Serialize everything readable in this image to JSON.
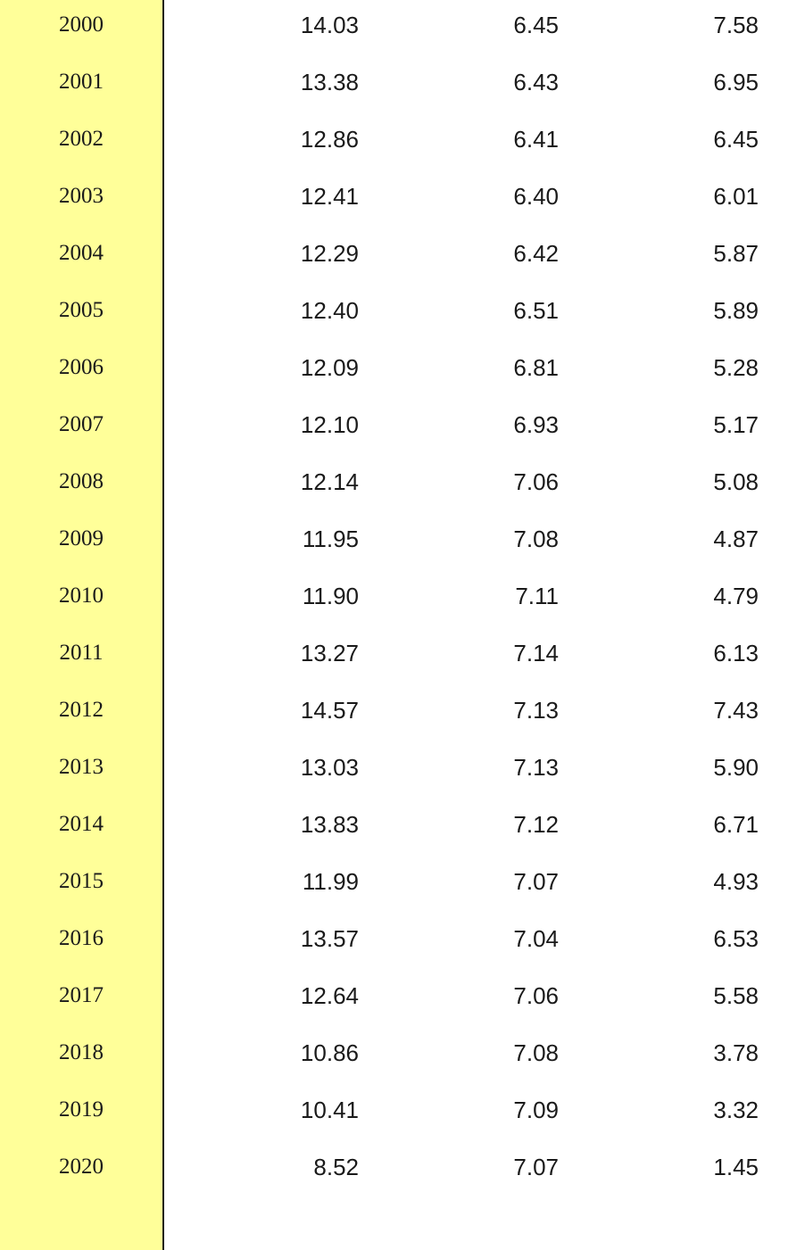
{
  "table": {
    "rows": [
      {
        "year": "2000",
        "c1": "14.03",
        "c2": "6.45",
        "c3": "7.58"
      },
      {
        "year": "2001",
        "c1": "13.38",
        "c2": "6.43",
        "c3": "6.95"
      },
      {
        "year": "2002",
        "c1": "12.86",
        "c2": "6.41",
        "c3": "6.45"
      },
      {
        "year": "2003",
        "c1": "12.41",
        "c2": "6.40",
        "c3": "6.01"
      },
      {
        "year": "2004",
        "c1": "12.29",
        "c2": "6.42",
        "c3": "5.87"
      },
      {
        "year": "2005",
        "c1": "12.40",
        "c2": "6.51",
        "c3": "5.89"
      },
      {
        "year": "2006",
        "c1": "12.09",
        "c2": "6.81",
        "c3": "5.28"
      },
      {
        "year": "2007",
        "c1": "12.10",
        "c2": "6.93",
        "c3": "5.17"
      },
      {
        "year": "2008",
        "c1": "12.14",
        "c2": "7.06",
        "c3": "5.08"
      },
      {
        "year": "2009",
        "c1": "11.95",
        "c2": "7.08",
        "c3": "4.87"
      },
      {
        "year": "2010",
        "c1": "11.90",
        "c2": "7.11",
        "c3": "4.79"
      },
      {
        "year": "2011",
        "c1": "13.27",
        "c2": "7.14",
        "c3": "6.13"
      },
      {
        "year": "2012",
        "c1": "14.57",
        "c2": "7.13",
        "c3": "7.43"
      },
      {
        "year": "2013",
        "c1": "13.03",
        "c2": "7.13",
        "c3": "5.90"
      },
      {
        "year": "2014",
        "c1": "13.83",
        "c2": "7.12",
        "c3": "6.71"
      },
      {
        "year": "2015",
        "c1": "11.99",
        "c2": "7.07",
        "c3": "4.93"
      },
      {
        "year": "2016",
        "c1": "13.57",
        "c2": "7.04",
        "c3": "6.53"
      },
      {
        "year": "2017",
        "c1": "12.64",
        "c2": "7.06",
        "c3": "5.58"
      },
      {
        "year": "2018",
        "c1": "10.86",
        "c2": "7.08",
        "c3": "3.78"
      },
      {
        "year": "2019",
        "c1": "10.41",
        "c2": "7.09",
        "c3": "3.32"
      },
      {
        "year": "2020",
        "c1": "8.52",
        "c2": "7.07",
        "c3": "1.45"
      }
    ]
  },
  "colors": {
    "year_band": "#ffff99",
    "divider": "#1a1a1a",
    "text": "#1a1a1a",
    "background": "#ffffff"
  }
}
